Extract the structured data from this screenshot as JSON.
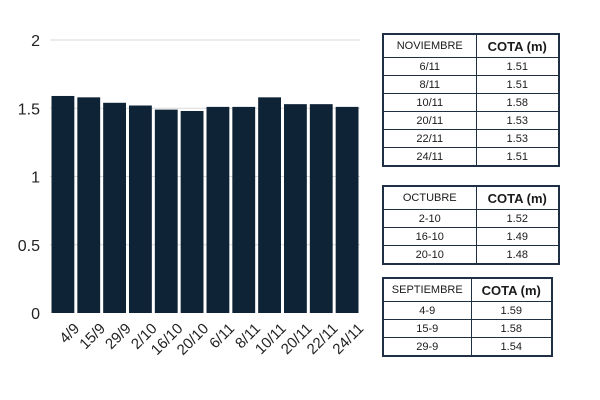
{
  "chart_data": {
    "type": "bar",
    "categories": [
      "4/9",
      "15/9",
      "29/9",
      "2/10",
      "16/10",
      "20/10",
      "6/11",
      "8/11",
      "10/11",
      "20/11",
      "22/11",
      "24/11"
    ],
    "values": [
      1.59,
      1.58,
      1.54,
      1.52,
      1.49,
      1.48,
      1.51,
      1.51,
      1.58,
      1.53,
      1.53,
      1.51
    ],
    "ylim": [
      0,
      2
    ],
    "yticks": [
      "0",
      "0.5",
      "1",
      "1.5",
      "2"
    ],
    "grid": true,
    "bar_color": "#0f2336"
  },
  "tables": {
    "noviembre": {
      "headers": [
        "NOVIEMBRE",
        "COTA (m)"
      ],
      "rows": [
        [
          "6/11",
          "1.51"
        ],
        [
          "8/11",
          "1.51"
        ],
        [
          "10/11",
          "1.58"
        ],
        [
          "20/11",
          "1.53"
        ],
        [
          "22/11",
          "1.53"
        ],
        [
          "24/11",
          "1.51"
        ]
      ]
    },
    "octubre": {
      "headers": [
        "OCTUBRE",
        "COTA (m)"
      ],
      "rows": [
        [
          "2-10",
          "1.52"
        ],
        [
          "16-10",
          "1.49"
        ],
        [
          "20-10",
          "1.48"
        ]
      ]
    },
    "septiembre": {
      "headers": [
        "SEPTIEMBRE",
        "COTA (m)"
      ],
      "rows": [
        [
          "4-9",
          "1.59"
        ],
        [
          "15-9",
          "1.58"
        ],
        [
          "29-9",
          "1.54"
        ]
      ]
    }
  }
}
